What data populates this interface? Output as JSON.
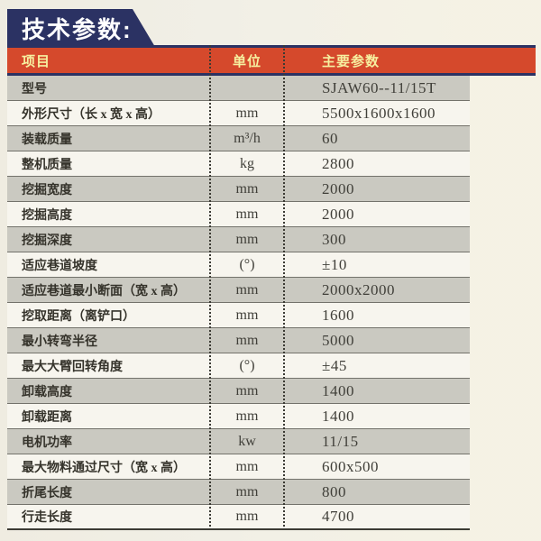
{
  "title": "技术参数:",
  "colors": {
    "banner_navy": "#2b3263",
    "header_red": "#d5492c",
    "header_text_yellow": "#f6f0a0",
    "row_gray": "#cac9c1",
    "row_white": "#f7f5ee",
    "page_background": "#f1efe6"
  },
  "table": {
    "headers": {
      "item": "项目",
      "unit": "单位",
      "value": "主要参数"
    },
    "rows": [
      {
        "item": "型号",
        "unit": "",
        "value": "SJAW60--11/15T"
      },
      {
        "item": "外形尺寸（长 x 宽 x 高）",
        "unit": "mm",
        "value": "5500x1600x1600"
      },
      {
        "item": "装载质量",
        "unit": "m³/h",
        "value": "60"
      },
      {
        "item": "整机质量",
        "unit": "kg",
        "value": "2800"
      },
      {
        "item": "挖掘宽度",
        "unit": "mm",
        "value": "2000"
      },
      {
        "item": "挖掘高度",
        "unit": "mm",
        "value": "2000"
      },
      {
        "item": "挖掘深度",
        "unit": "mm",
        "value": "300"
      },
      {
        "item": "适应巷道坡度",
        "unit": "(°)",
        "value": "±10"
      },
      {
        "item": "适应巷道最小断面（宽 x 高）",
        "unit": "mm",
        "value": "2000x2000"
      },
      {
        "item": "挖取距离（离铲口）",
        "unit": "mm",
        "value": "1600"
      },
      {
        "item": "最小转弯半径",
        "unit": "mm",
        "value": "5000"
      },
      {
        "item": "最大大臂回转角度",
        "unit": "(°)",
        "value": "±45"
      },
      {
        "item": "卸载高度",
        "unit": "mm",
        "value": "1400"
      },
      {
        "item": "卸载距离",
        "unit": "mm",
        "value": "1400"
      },
      {
        "item": "电机功率",
        "unit": "kw",
        "value": "11/15"
      },
      {
        "item": "最大物料通过尺寸（宽 x 高）",
        "unit": "mm",
        "value": "600x500"
      },
      {
        "item": "折尾长度",
        "unit": "mm",
        "value": "800"
      },
      {
        "item": "行走长度",
        "unit": "mm",
        "value": "4700"
      }
    ]
  }
}
